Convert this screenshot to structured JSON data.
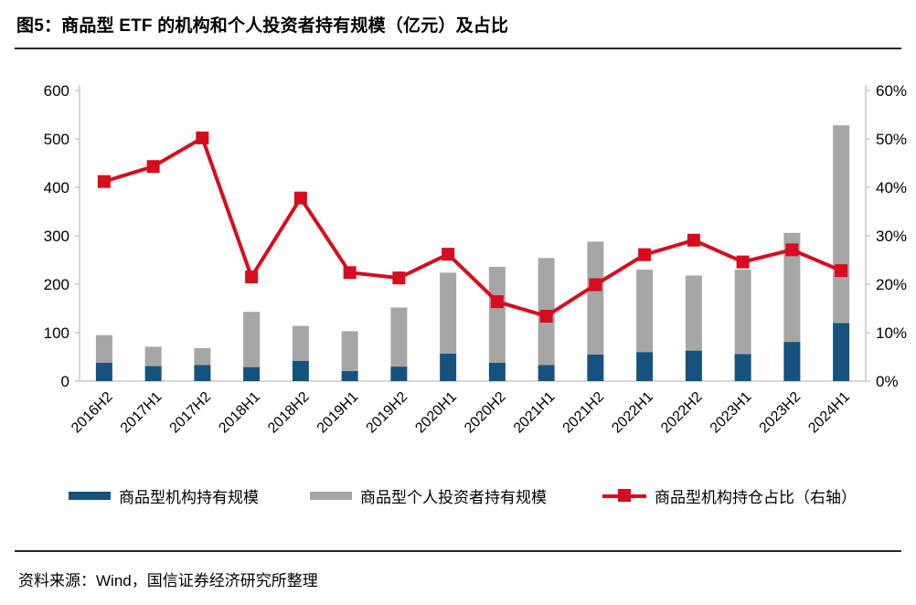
{
  "figure": {
    "title": "图5：商品型 ETF 的机构和个人投资者持有规模（亿元）及占比",
    "source": "资料来源：Wind，国信证券经济研究所整理"
  },
  "legend": {
    "items": [
      {
        "label": "商品型机构持有规模",
        "swatch": "blue-bar-swatch"
      },
      {
        "label": "商品型个人投资者持有规模",
        "swatch": "gray-bar-swatch"
      },
      {
        "label": "商品型机构持仓占比（右轴）",
        "swatch": "red-line-marker-swatch"
      }
    ]
  },
  "colors": {
    "institution_bar": "#15537E",
    "individual_bar": "#A6A6A6",
    "ratio_line": "#D70C1E",
    "axis_line": "#C9C9C9",
    "tick_text": "#000000"
  },
  "chart_data": {
    "type": "bar",
    "subtype": "stacked-bars-with-right-axis-line",
    "title": "商品型 ETF 的机构和个人投资者持有规模（亿元）及占比",
    "categories": [
      "2016H2",
      "2017H1",
      "2017H2",
      "2018H1",
      "2018H2",
      "2019H1",
      "2019H2",
      "2020H1",
      "2020H2",
      "2021H1",
      "2021H2",
      "2022H1",
      "2022H2",
      "2023H1",
      "2023H2",
      "2024H1"
    ],
    "series": [
      {
        "name": "商品型机构持有规模",
        "type": "bar",
        "stack": "holdings",
        "axis": "left",
        "values": [
          38,
          31,
          33,
          29,
          42,
          21,
          30,
          57,
          38,
          33,
          55,
          60,
          63,
          56,
          81,
          120
        ]
      },
      {
        "name": "商品型个人投资者持有规模",
        "type": "bar",
        "stack": "holdings",
        "axis": "left",
        "values": [
          57,
          40,
          35,
          114,
          72,
          82,
          122,
          167,
          198,
          221,
          233,
          170,
          155,
          174,
          225,
          408
        ]
      },
      {
        "name": "商品型机构持仓占比（右轴）",
        "type": "line",
        "axis": "right",
        "values": [
          41.2,
          44.3,
          50.2,
          21.5,
          37.8,
          22.4,
          21.3,
          26.2,
          16.4,
          13.4,
          19.9,
          26.1,
          29.1,
          24.6,
          27.1,
          22.8
        ]
      }
    ],
    "left_axis": {
      "min": 0,
      "max": 600,
      "step": 100,
      "tick_labels": [
        "0",
        "100",
        "200",
        "300",
        "400",
        "500",
        "600"
      ],
      "ylabel": ""
    },
    "right_axis": {
      "min": 0,
      "max": 60,
      "step": 10,
      "tick_labels": [
        "0%",
        "10%",
        "20%",
        "30%",
        "40%",
        "50%",
        "60%"
      ],
      "unit": "%"
    },
    "xlabel": "",
    "grid": false,
    "legend_position": "bottom",
    "x_tick_rotation": -45
  }
}
